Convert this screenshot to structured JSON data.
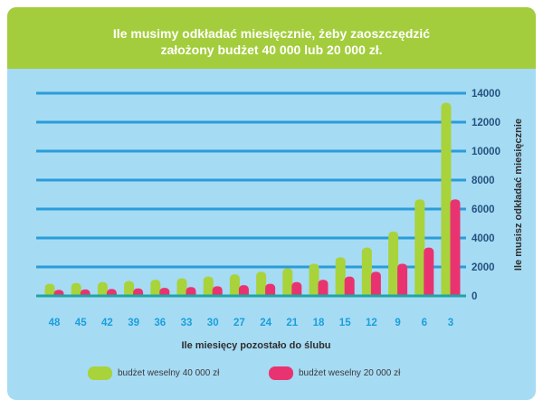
{
  "colors": {
    "page_background": "#ffffff",
    "header_background": "#a3cd3c",
    "plot_background": "#a6dbf4",
    "gridline": "#2a9dd8",
    "baseline": "#1ea5a5",
    "title_text": "#ffffff",
    "x_tick_text": "#1a9fdb",
    "y_tick_text": "#24527f",
    "axis_title_text": "#2e2e2e",
    "legend_text": "#3a3a3a"
  },
  "chart_data": {
    "type": "bar",
    "title": "Ile musimy odkładać miesięcznie, żeby zaoszczędzić założony budżet 40 000 lub 20 000 zł.",
    "xlabel": "Ile miesięcy pozostało do ślubu",
    "ylabel": "Ile musisz odkładać miesięcznie",
    "categories": [
      "48",
      "45",
      "42",
      "39",
      "36",
      "33",
      "30",
      "27",
      "24",
      "21",
      "18",
      "15",
      "12",
      "9",
      "6",
      "3"
    ],
    "series": [
      {
        "name": "budżet weselny 40 000 zł",
        "color": "#a8d33b",
        "values": [
          833,
          889,
          952,
          1026,
          1111,
          1212,
          1333,
          1481,
          1667,
          1905,
          2222,
          2667,
          3333,
          4444,
          6667,
          13333
        ]
      },
      {
        "name": "budżet weselny 20 000 zł",
        "color": "#e93370",
        "values": [
          417,
          444,
          476,
          513,
          556,
          606,
          667,
          741,
          833,
          952,
          1111,
          1333,
          1667,
          2222,
          3333,
          6667
        ]
      }
    ],
    "ylim": [
      0,
      14000
    ],
    "yticks": [
      0,
      2000,
      4000,
      6000,
      8000,
      10000,
      12000,
      14000
    ],
    "y_axis_side": "right",
    "grid": true,
    "legend": "bottom"
  }
}
